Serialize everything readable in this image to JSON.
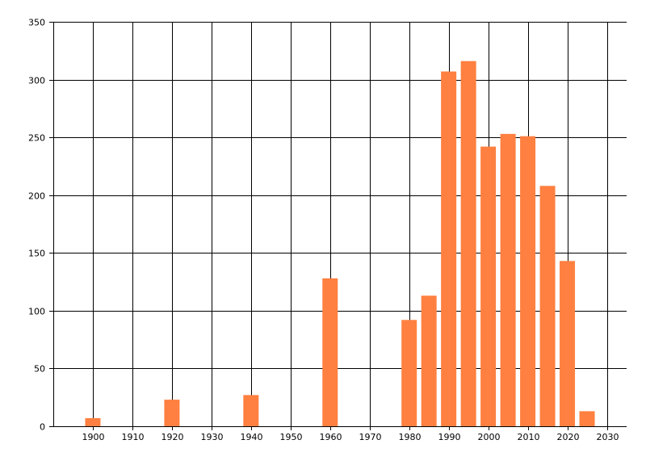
{
  "chart_data": {
    "type": "bar",
    "title": "",
    "xlabel": "",
    "ylabel": "",
    "x": [
      1900,
      1920,
      1940,
      1960,
      1980,
      1985,
      1990,
      1995,
      2000,
      2005,
      2010,
      2015,
      2020,
      2025
    ],
    "values": [
      7,
      23,
      27,
      128,
      92,
      113,
      307,
      316,
      242,
      253,
      251,
      208,
      143,
      13
    ],
    "xlim": [
      1890,
      2035
    ],
    "ylim": [
      0,
      350
    ],
    "x_ticks": [
      "1900",
      "1910",
      "1920",
      "1930",
      "1940",
      "1950",
      "1960",
      "1970",
      "1980",
      "1990",
      "2000",
      "2010",
      "2020",
      "2030"
    ],
    "y_ticks": [
      "0",
      "50",
      "100",
      "150",
      "200",
      "250",
      "300",
      "350"
    ],
    "grid": true,
    "legend": "none",
    "bar_color": "#FF8040"
  }
}
